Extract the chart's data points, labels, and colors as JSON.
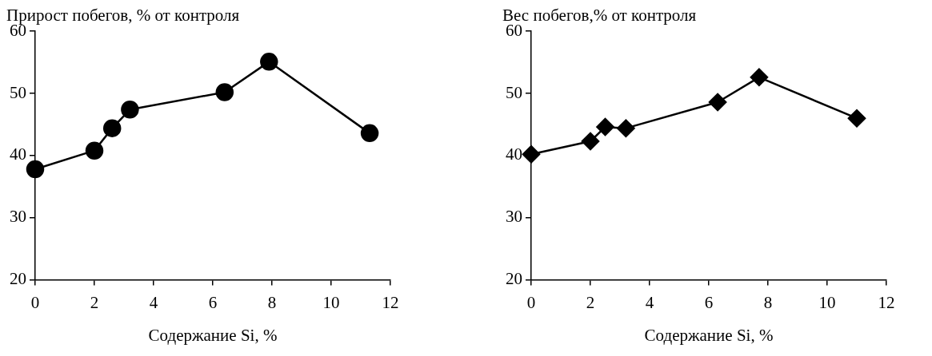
{
  "chart_data": [
    {
      "type": "line",
      "title": "Прирост побегов, % от контроля",
      "xlabel": "Содержание Si, %",
      "x": [
        0,
        2.0,
        2.6,
        3.2,
        6.4,
        7.9,
        11.3
      ],
      "marker": "circle",
      "xlim": [
        0,
        12
      ],
      "xticks": [
        0,
        2,
        4,
        6,
        8,
        10,
        12
      ],
      "ylim": [
        20,
        60
      ],
      "yticks": [
        20,
        30,
        40,
        50,
        60
      ],
      "series": [
        {
          "color": "#000000",
          "values": [
            37.8,
            40.8,
            44.4,
            47.4,
            50.2,
            55.1,
            43.6
          ]
        }
      ]
    },
    {
      "type": "line",
      "title": "Вес побегов,% от контроля",
      "xlabel": "Содержание Si, %",
      "x": [
        0,
        2.0,
        2.5,
        3.2,
        6.3,
        7.7,
        11.0
      ],
      "marker": "diamond",
      "xlim": [
        0,
        12
      ],
      "xticks": [
        0,
        2,
        4,
        6,
        8,
        10,
        12
      ],
      "ylim": [
        20,
        60
      ],
      "yticks": [
        20,
        30,
        40,
        50,
        60
      ],
      "series": [
        {
          "color": "#000000",
          "values": [
            40.2,
            42.3,
            44.6,
            44.4,
            48.6,
            52.6,
            46.0
          ]
        }
      ]
    }
  ]
}
